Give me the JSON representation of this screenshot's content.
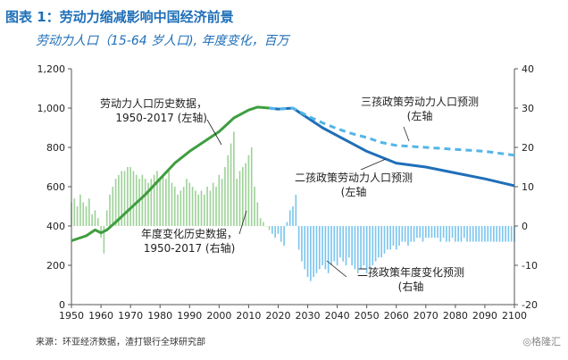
{
  "header": {
    "title": "图表 1：劳动力缩减影响中国经济前景",
    "subtitle": "劳动力人口（15-64 岁人口), 年度变化，百万"
  },
  "footer": {
    "source": "来源：环亚经济数据，渣打银行全球研究部",
    "watermark": "◎格隆汇"
  },
  "colors": {
    "history_line": "#3f9e3f",
    "history_bar": "#9fd39a",
    "projection_solid": "#1f6fb8",
    "projection_dashed": "#52b5e8",
    "projection_bar": "#7cc6ee"
  },
  "chart_data": {
    "type": "line+bar",
    "xlim": [
      1950,
      2100
    ],
    "ylim_left": [
      0,
      1200
    ],
    "ylim_right": [
      -20,
      40
    ],
    "grid": false,
    "x_ticks": [
      "1950",
      "1960",
      "1970",
      "1980",
      "1990",
      "2000",
      "2010",
      "2020",
      "2030",
      "2040",
      "2050",
      "2060",
      "2070",
      "2080",
      "2090",
      "2100"
    ],
    "left_ticks": [
      "0",
      "200",
      "400",
      "600",
      "800",
      "1,000",
      "1,200"
    ],
    "right_ticks": [
      "-20",
      "-10",
      "0",
      "10",
      "20",
      "30",
      "40"
    ],
    "annotations": {
      "history_line": [
        "劳动力人口历史数据，",
        "1950-2017 (左轴)"
      ],
      "history_bar": [
        "年度变化历史数据，",
        "1950-2017 (右轴)"
      ],
      "three_child_line": [
        "三孩政策劳动力人口预测",
        "(左轴"
      ],
      "two_child_line": [
        "二孩政策劳动力人口预测",
        "(左轴"
      ],
      "two_child_bar": [
        "二孩政策年度变化预测",
        "(右轴"
      ]
    },
    "series": [
      {
        "axis": "left",
        "style": "solid",
        "points": [
          [
            1950,
            325
          ],
          [
            1955,
            350
          ],
          [
            1958,
            380
          ],
          [
            1960,
            365
          ],
          [
            1962,
            380
          ],
          [
            1965,
            420
          ],
          [
            1970,
            490
          ],
          [
            1975,
            560
          ],
          [
            1980,
            640
          ],
          [
            1985,
            720
          ],
          [
            1990,
            780
          ],
          [
            1995,
            830
          ],
          [
            2000,
            880
          ],
          [
            2005,
            950
          ],
          [
            2010,
            990
          ],
          [
            2013,
            1005
          ],
          [
            2017,
            1000
          ]
        ]
      },
      {
        "axis": "left",
        "style": "solid",
        "points": [
          [
            2017,
            1000
          ],
          [
            2020,
            995
          ],
          [
            2025,
            1000
          ],
          [
            2030,
            950
          ],
          [
            2035,
            900
          ],
          [
            2040,
            860
          ],
          [
            2045,
            820
          ],
          [
            2050,
            780
          ],
          [
            2055,
            750
          ],
          [
            2060,
            720
          ],
          [
            2070,
            700
          ],
          [
            2080,
            670
          ],
          [
            2090,
            640
          ],
          [
            2100,
            605
          ]
        ]
      },
      {
        "axis": "left",
        "style": "dashed",
        "points": [
          [
            2017,
            1000
          ],
          [
            2020,
            995
          ],
          [
            2025,
            1000
          ],
          [
            2030,
            960
          ],
          [
            2035,
            925
          ],
          [
            2040,
            895
          ],
          [
            2045,
            870
          ],
          [
            2050,
            850
          ],
          [
            2055,
            825
          ],
          [
            2060,
            810
          ],
          [
            2070,
            800
          ],
          [
            2080,
            790
          ],
          [
            2090,
            780
          ],
          [
            2100,
            760
          ]
        ]
      },
      {
        "axis": "right",
        "type": "bar",
        "x": [
          1950,
          1951,
          1952,
          1953,
          1954,
          1955,
          1956,
          1957,
          1958,
          1959,
          1960,
          1961,
          1962,
          1963,
          1964,
          1965,
          1966,
          1967,
          1968,
          1969,
          1970,
          1971,
          1972,
          1973,
          1974,
          1975,
          1976,
          1977,
          1978,
          1979,
          1980,
          1981,
          1982,
          1983,
          1984,
          1985,
          1986,
          1987,
          1988,
          1989,
          1990,
          1991,
          1992,
          1993,
          1994,
          1995,
          1996,
          1997,
          1998,
          1999,
          2000,
          2001,
          2002,
          2003,
          2004,
          2005,
          2006,
          2007,
          2008,
          2009,
          2010,
          2011,
          2012,
          2013,
          2014,
          2015,
          2016,
          2017
        ],
        "values": [
          6,
          7,
          5,
          8,
          6,
          5,
          7,
          3,
          4,
          2,
          -3,
          -7,
          4,
          8,
          10,
          12,
          13,
          14,
          14,
          15,
          15,
          14,
          13,
          12,
          13,
          12,
          11,
          12,
          13,
          14,
          12,
          13,
          12,
          14,
          11,
          10,
          8,
          9,
          10,
          12,
          11,
          10,
          9,
          8,
          9,
          8,
          10,
          9,
          11,
          10,
          13,
          12,
          15,
          18,
          21,
          24,
          12,
          14,
          15,
          16,
          18,
          20,
          10,
          6,
          2,
          1,
          0,
          -1
        ]
      },
      {
        "axis": "right",
        "type": "bar",
        "x": [
          2018,
          2019,
          2020,
          2021,
          2022,
          2023,
          2024,
          2025,
          2026,
          2027,
          2028,
          2029,
          2030,
          2031,
          2032,
          2033,
          2034,
          2035,
          2036,
          2037,
          2038,
          2039,
          2040,
          2041,
          2042,
          2043,
          2044,
          2045,
          2046,
          2047,
          2048,
          2049,
          2050,
          2051,
          2052,
          2053,
          2054,
          2055,
          2056,
          2057,
          2058,
          2059,
          2060,
          2061,
          2062,
          2063,
          2064,
          2065,
          2066,
          2067,
          2068,
          2069,
          2070,
          2071,
          2072,
          2073,
          2074,
          2075,
          2076,
          2077,
          2078,
          2079,
          2080,
          2081,
          2082,
          2083,
          2084,
          2085,
          2086,
          2087,
          2088,
          2089,
          2090,
          2091,
          2092,
          2093,
          2094,
          2095,
          2096,
          2097,
          2098,
          2099,
          2100
        ],
        "values": [
          -2,
          -3,
          -2,
          -4,
          -5,
          1,
          4,
          5,
          8,
          -6,
          -9,
          -11,
          -13,
          -14,
          -13,
          -12,
          -11,
          -10,
          -11,
          -12,
          -10,
          -9,
          -10,
          -8,
          -9,
          -10,
          -8,
          -10,
          -11,
          -12,
          -11,
          -10,
          -12,
          -11,
          -10,
          -9,
          -8,
          -8,
          -7,
          -6,
          -6,
          -5,
          -6,
          -5,
          -4,
          -4,
          -5,
          -4,
          -4,
          -3,
          -3,
          -4,
          -3,
          -3,
          -3,
          -3,
          -3,
          -4,
          -3,
          -4,
          -4,
          -3,
          -4,
          -4,
          -4,
          -3,
          -4,
          -4,
          -4,
          -4,
          -4,
          -4,
          -4,
          -4,
          -4,
          -4,
          -4,
          -4,
          -4,
          -4,
          -4,
          -4,
          -4
        ]
      }
    ]
  }
}
